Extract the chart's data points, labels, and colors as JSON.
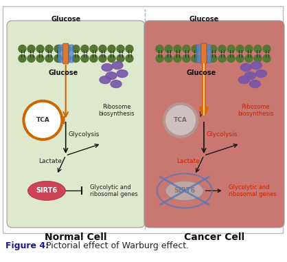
{
  "fig_width": 4.18,
  "fig_height": 3.81,
  "dpi": 100,
  "background": "#ffffff",
  "border_color": "#bbbbbb",
  "caption_bold": "Figure 4:",
  "caption_normal": " Pictorial effect of Warburg effect.",
  "caption_fontsize": 9.0,
  "normal_cell": {
    "label": "Normal Cell",
    "bg_color": "#dde8cc",
    "membrane_color": "#557733",
    "glucose_label": "Glucose",
    "glycolysis_label": "Glycolysis",
    "lactate_label": "Lactate",
    "ribosome_label": "Ribosome\nbiosynthesis",
    "tca_label": "TCA",
    "tca_color_fill": "#ffffff",
    "tca_color_stroke": "#cc6600",
    "sirt6_label": "SIRT6",
    "sirt6_fill": "#cc4455",
    "gene_label": "Glycolytic and\nribosomal genes",
    "text_color": "#222222",
    "glucose_arrow_color": "#cc6600"
  },
  "cancer_cell": {
    "label": "Cancer Cell",
    "bg_color": "#c87870",
    "membrane_color": "#557733",
    "glucose_label": "Glucose",
    "glycolysis_label": "Glycolysis",
    "lactate_label": "Lactate",
    "ribosome_label": "Ribosome\nbiosynthesis",
    "tca_label": "TCA",
    "tca_color_fill": "#dddddd",
    "tca_color_stroke": "#aaaaaa",
    "sirt6_label": "SIRT6",
    "sirt6_fill": "#aaaaaa",
    "gene_label": "Glycolytic and\nribosomal genes",
    "text_color": "#cc2200",
    "glucose_arrow_color": "#dd7700",
    "cross_color": "#5577bb"
  },
  "divider_color": "#8899cc"
}
